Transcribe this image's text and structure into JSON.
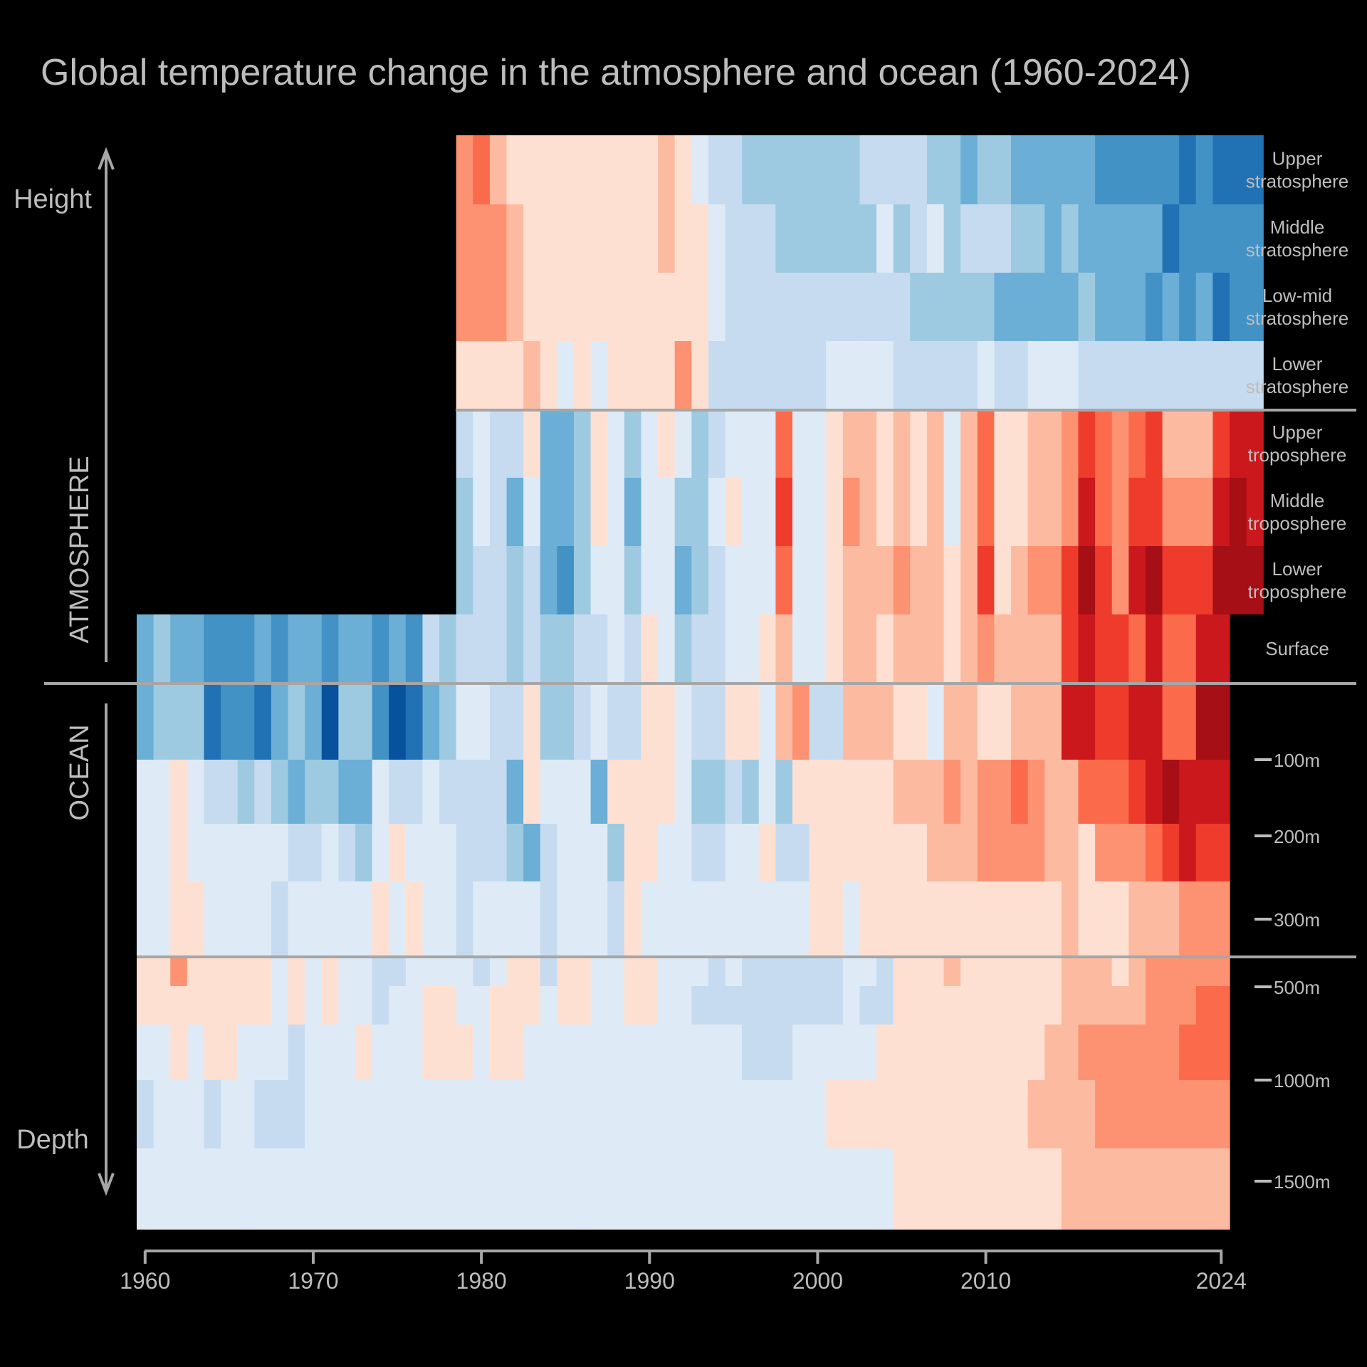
{
  "chart_data": {
    "type": "heatmap",
    "title": "Global temperature change in the atmosphere and ocean (1960-2024)",
    "x_start": 1960,
    "x_end": 2024,
    "x_ticks": [
      "1960",
      "1970",
      "1980",
      "1990",
      "2000",
      "2010",
      "2024"
    ],
    "section_labels": {
      "top": "ATMOSPHERE",
      "bottom": "OCEAN"
    },
    "arrow_labels": {
      "up": "Height",
      "down": "Depth"
    },
    "value_scale": "diverging, -4 (dark blue) to +4 (dark red); estimated anomaly levels read from colors",
    "colors": [
      "#08306b",
      "#08519c",
      "#2171b5",
      "#4292c6",
      "#6baed6",
      "#9ecae1",
      "#c6dbef",
      "#deebf7",
      "#fee0d2",
      "#fcbba1",
      "#fc9272",
      "#fb6a4a",
      "#ef3b2c",
      "#cb181d",
      "#a50f15",
      "#67000d"
    ],
    "rows": [
      {
        "label": "Upper stratosphere",
        "start": 1979,
        "values": [
          3,
          4,
          2,
          1,
          0,
          0,
          0,
          0,
          0,
          0,
          1,
          1,
          2,
          0,
          -1,
          -2,
          -2,
          -3,
          -3,
          -3,
          -3,
          -3,
          -3,
          -3,
          -2,
          -2,
          -2,
          -2,
          -3,
          -3,
          -4,
          -3,
          -3,
          -4,
          -4,
          -4,
          -4,
          -4,
          -5,
          -5,
          -5,
          -5,
          -5,
          -6,
          -5,
          -6,
          -6,
          -6
        ]
      },
      {
        "label": "Middle stratosphere",
        "start": 1979,
        "values": [
          3,
          3,
          3,
          2,
          1,
          0,
          0,
          0,
          0,
          0,
          0,
          0,
          2,
          1,
          0,
          -1,
          -2,
          -2,
          -2,
          -3,
          -3,
          -3,
          -3,
          -3,
          -3,
          -1,
          -3,
          -2,
          -1,
          -3,
          -2,
          -2,
          -2,
          -3,
          -3,
          -4,
          -3,
          -4,
          -4,
          -4,
          -4,
          -4,
          -6,
          -5,
          -5,
          -5,
          -5,
          -5
        ]
      },
      {
        "label": "Low-mid stratosphere",
        "start": 1979,
        "values": [
          3,
          3,
          3,
          2,
          1,
          0,
          0,
          0,
          0,
          0,
          0,
          0,
          1,
          1,
          0,
          -1,
          -2,
          -2,
          -2,
          -2,
          -2,
          -2,
          -2,
          -2,
          -2,
          -2,
          -2,
          -3,
          -3,
          -3,
          -3,
          -3,
          -4,
          -4,
          -4,
          -4,
          -4,
          -3,
          -4,
          -4,
          -4,
          -5,
          -4,
          -5,
          -4,
          -6,
          -5,
          -5
        ]
      },
      {
        "label": "Lower stratosphere",
        "start": 1979,
        "values": [
          1,
          1,
          1,
          1,
          2,
          0,
          -1,
          0,
          -1,
          0,
          0,
          0,
          1,
          3,
          0,
          -2,
          -2,
          -2,
          -2,
          -2,
          -2,
          -2,
          -1,
          -1,
          -1,
          -1,
          -2,
          -2,
          -2,
          -2,
          -2,
          -1,
          -2,
          -2,
          -1,
          -1,
          -1,
          -2,
          -2,
          -2,
          -2,
          -2,
          -2,
          -2,
          -2,
          -2,
          -2,
          -2
        ]
      },
      {
        "label": "Upper troposphere",
        "start": 1979,
        "values": [
          -2,
          -1,
          -2,
          -2,
          0,
          -4,
          -4,
          -3,
          0,
          -1,
          -3,
          -1,
          0,
          -1,
          -3,
          -2,
          -1,
          -1,
          -1,
          4,
          -1,
          -1,
          1,
          2,
          2,
          1,
          2,
          1,
          2,
          -1,
          2,
          4,
          0,
          0,
          2,
          2,
          3,
          5,
          4,
          3,
          4,
          5,
          2,
          2,
          2,
          5,
          6,
          6
        ]
      },
      {
        "label": "Middle troposphere",
        "start": 1979,
        "values": [
          -3,
          -1,
          -2,
          -4,
          -1,
          -4,
          -4,
          -3,
          0,
          -1,
          -4,
          -1,
          -1,
          -3,
          -3,
          -1,
          0,
          -1,
          -1,
          5,
          -1,
          -1,
          1,
          3,
          2,
          1,
          2,
          1,
          2,
          -1,
          2,
          4,
          0,
          1,
          2,
          2,
          3,
          6,
          4,
          3,
          5,
          5,
          3,
          3,
          3,
          6,
          7,
          6
        ]
      },
      {
        "label": "Lower troposphere",
        "start": 1979,
        "values": [
          -3,
          -2,
          -2,
          -3,
          -2,
          -4,
          -5,
          -3,
          -1,
          -1,
          -3,
          -1,
          -1,
          -4,
          -3,
          -2,
          -1,
          -1,
          -1,
          4,
          -1,
          -1,
          1,
          2,
          2,
          2,
          3,
          2,
          2,
          0,
          2,
          5,
          1,
          2,
          3,
          3,
          5,
          7,
          5,
          3,
          6,
          7,
          5,
          5,
          5,
          7,
          7,
          7
        ]
      },
      {
        "label": "Surface",
        "start": 1960,
        "values": [
          -4,
          -3,
          -4,
          -4,
          -5,
          -5,
          -5,
          -4,
          -5,
          -4,
          -4,
          -5,
          -4,
          -4,
          -5,
          -4,
          -5,
          -2,
          -3,
          -2,
          -2,
          -2,
          -3,
          -2,
          -3,
          -3,
          -2,
          -2,
          -1,
          -2,
          0,
          -1,
          -3,
          -2,
          -2,
          -1,
          -1,
          0,
          2,
          -1,
          -1,
          1,
          2,
          2,
          1,
          2,
          2,
          2,
          1,
          2,
          3,
          2,
          2,
          2,
          2,
          5,
          6,
          5,
          5,
          4,
          6,
          4,
          4,
          6,
          6
        ]
      },
      {
        "label": "",
        "start": 1960,
        "values": [
          -4,
          -3,
          -3,
          -3,
          -6,
          -5,
          -5,
          -6,
          -4,
          -3,
          -4,
          -7,
          -3,
          -3,
          -5,
          -7,
          -6,
          -4,
          -3,
          -1,
          -1,
          -2,
          -2,
          0,
          -3,
          -3,
          -2,
          -1,
          -2,
          -2,
          1,
          1,
          -1,
          -2,
          -2,
          0,
          0,
          -1,
          2,
          3,
          -2,
          -2,
          2,
          2,
          2,
          1,
          0,
          -1,
          2,
          2,
          0,
          1,
          2,
          2,
          2,
          6,
          6,
          5,
          5,
          6,
          6,
          4,
          4,
          7,
          7
        ]
      },
      {
        "label": "100m",
        "start": 1960,
        "values": [
          -1,
          -1,
          1,
          -1,
          -2,
          -2,
          -3,
          -2,
          -3,
          -4,
          -3,
          -3,
          -4,
          -4,
          -1,
          -2,
          -2,
          -1,
          -2,
          -2,
          -2,
          -2,
          -4,
          0,
          -1,
          -1,
          -1,
          -4,
          0,
          1,
          0,
          0,
          -1,
          -3,
          -3,
          -2,
          -3,
          -1,
          -3,
          0,
          0,
          0,
          0,
          1,
          1,
          2,
          2,
          2,
          3,
          2,
          3,
          3,
          4,
          3,
          2,
          2,
          4,
          4,
          4,
          5,
          6,
          7,
          6,
          6,
          6
        ]
      },
      {
        "label": "200m",
        "start": 1960,
        "values": [
          -1,
          -1,
          1,
          -1,
          -1,
          -1,
          -1,
          -1,
          -1,
          -2,
          -2,
          -1,
          -2,
          -3,
          -1,
          0,
          -1,
          -1,
          -1,
          -2,
          -2,
          -2,
          -3,
          -4,
          -2,
          -1,
          -1,
          -1,
          -3,
          0,
          0,
          -1,
          -1,
          -2,
          -2,
          -1,
          -1,
          0,
          -2,
          -2,
          0,
          0,
          0,
          0,
          1,
          1,
          1,
          2,
          2,
          2,
          3,
          3,
          3,
          3,
          2,
          2,
          1,
          3,
          3,
          3,
          4,
          5,
          6,
          5,
          5
        ]
      },
      {
        "label": "300m",
        "start": 1960,
        "values": [
          -1,
          -1,
          0,
          0,
          -1,
          -1,
          -1,
          -1,
          -2,
          -1,
          -1,
          -1,
          -1,
          -1,
          0,
          -1,
          0,
          -1,
          -1,
          -2,
          -1,
          -1,
          -1,
          -1,
          -2,
          -1,
          -1,
          -1,
          -2,
          0,
          -1,
          -1,
          -1,
          -1,
          -1,
          -1,
          -1,
          -1,
          -1,
          -1,
          0,
          0,
          -1,
          0,
          0,
          1,
          1,
          1,
          1,
          1,
          1,
          1,
          1,
          1,
          1,
          2,
          1,
          1,
          1,
          2,
          2,
          2,
          3,
          3,
          3
        ]
      },
      {
        "label": "500m",
        "start": 1960,
        "values": [
          0,
          1,
          3,
          1,
          1,
          1,
          1,
          0,
          -1,
          0,
          -1,
          0,
          -1,
          -1,
          -2,
          -2,
          -1,
          -1,
          -1,
          -1,
          -2,
          -1,
          0,
          0,
          -2,
          1,
          1,
          -1,
          -1,
          0,
          1,
          -1,
          -1,
          -1,
          -2,
          -1,
          -2,
          -2,
          -2,
          -2,
          -2,
          -2,
          -1,
          -1,
          -2,
          1,
          1,
          1,
          2,
          0,
          1,
          1,
          0,
          1,
          1,
          2,
          2,
          2,
          1,
          2,
          3,
          3,
          3,
          3,
          3
        ]
      },
      {
        "label": "",
        "start": 1960,
        "values": [
          0,
          0,
          1,
          0,
          1,
          1,
          1,
          0,
          -1,
          0,
          -1,
          1,
          -1,
          -1,
          -2,
          -1,
          -1,
          0,
          0,
          -1,
          -1,
          1,
          0,
          0,
          -1,
          0,
          0,
          -1,
          -1,
          0,
          1,
          -1,
          -1,
          -2,
          -2,
          -2,
          -2,
          -2,
          -2,
          -2,
          -2,
          -2,
          -1,
          -2,
          -2,
          1,
          1,
          1,
          1,
          1,
          1,
          1,
          1,
          1,
          1,
          2,
          2,
          2,
          2,
          2,
          3,
          3,
          3,
          4,
          4
        ]
      },
      {
        "label": "1000m",
        "start": 1960,
        "values": [
          -1,
          -1,
          0,
          -1,
          0,
          0,
          -1,
          -1,
          -1,
          -2,
          -1,
          -1,
          -1,
          0,
          -1,
          -1,
          -1,
          0,
          0,
          0,
          -1,
          0,
          0,
          -1,
          -1,
          -1,
          -1,
          -1,
          -1,
          -1,
          -1,
          -1,
          -1,
          -1,
          -1,
          -1,
          -2,
          -2,
          -2,
          -1,
          -1,
          -1,
          -1,
          -1,
          0,
          0,
          1,
          1,
          1,
          1,
          1,
          1,
          1,
          1,
          2,
          2,
          3,
          3,
          3,
          3,
          3,
          3,
          4,
          4,
          4
        ]
      },
      {
        "label": "",
        "start": 1960,
        "values": [
          -2,
          -1,
          -1,
          -1,
          -2,
          -1,
          -1,
          -2,
          -2,
          -2,
          -1,
          -1,
          -1,
          -1,
          -1,
          -1,
          -1,
          -1,
          -1,
          -1,
          -1,
          -1,
          -1,
          -1,
          -1,
          -1,
          -1,
          -1,
          -1,
          -1,
          -1,
          -1,
          -1,
          -1,
          -1,
          -1,
          -1,
          -1,
          -1,
          -1,
          -1,
          0,
          0,
          0,
          0,
          1,
          1,
          1,
          1,
          1,
          1,
          1,
          1,
          2,
          2,
          2,
          2,
          3,
          3,
          3,
          3,
          3,
          3,
          3,
          3
        ]
      },
      {
        "label": "1500m",
        "start": 1960,
        "values": [
          -1,
          -1,
          -1,
          -1,
          -1,
          -1,
          -1,
          -1,
          -1,
          -1,
          -1,
          -1,
          -1,
          -1,
          -1,
          -1,
          -1,
          -1,
          -1,
          -1,
          -1,
          -1,
          -1,
          -1,
          -1,
          -1,
          -1,
          -1,
          -1,
          -1,
          -1,
          -1,
          -1,
          -1,
          -1,
          -1,
          -1,
          -1,
          -1,
          -1,
          -1,
          -1,
          -1,
          -1,
          -1,
          0,
          0,
          0,
          1,
          0,
          0,
          1,
          1,
          1,
          1,
          2,
          2,
          2,
          2,
          2,
          2,
          2,
          2,
          2,
          2
        ]
      }
    ],
    "row_label_display": [
      [
        "Upper",
        "stratosphere"
      ],
      [
        "Middle",
        "stratosphere"
      ],
      [
        "Low-mid",
        "stratosphere"
      ],
      [
        "Lower",
        "stratosphere"
      ],
      [
        "Upper",
        "troposphere"
      ],
      [
        "Middle",
        "troposphere"
      ],
      [
        "Lower",
        "troposphere"
      ],
      [
        "Surface"
      ]
    ],
    "depth_labels": [
      "100m",
      "200m",
      "300m",
      "500m",
      "1000m",
      "1500m"
    ]
  }
}
